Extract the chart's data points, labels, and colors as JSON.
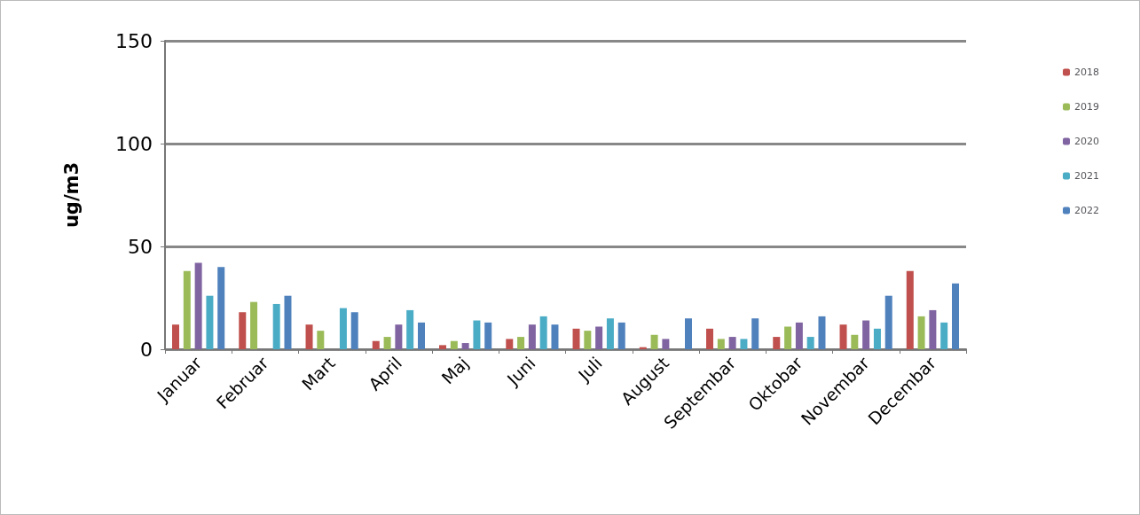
{
  "chart_data": {
    "type": "bar",
    "ylabel": "ug/m3",
    "categories": [
      "Januar",
      "Februar",
      "Mart",
      "April",
      "Maj",
      "Juni",
      "Juli",
      "August",
      "Septembar",
      "Oktobar",
      "Novembar",
      "Decembar"
    ],
    "series": [
      {
        "name": "2018",
        "color": "#c0504d",
        "values": [
          12,
          18,
          12,
          4,
          2,
          5,
          10,
          1,
          10,
          6,
          12,
          38
        ]
      },
      {
        "name": "2019",
        "color": "#9bbb59",
        "values": [
          38,
          23,
          9,
          6,
          4,
          6,
          9,
          7,
          5,
          11,
          7,
          16
        ]
      },
      {
        "name": "2020",
        "color": "#8064a2",
        "values": [
          42,
          null,
          null,
          12,
          3,
          12,
          11,
          5,
          6,
          13,
          14,
          19
        ]
      },
      {
        "name": "2021",
        "color": "#4bacc6",
        "values": [
          26,
          22,
          20,
          19,
          14,
          16,
          15,
          null,
          5,
          6,
          10,
          13
        ]
      },
      {
        "name": "2022",
        "color": "#4f81bd",
        "values": [
          40,
          26,
          18,
          13,
          13,
          12,
          13,
          15,
          15,
          16,
          26,
          32
        ]
      }
    ],
    "ylim": [
      0,
      150
    ],
    "yticks": [
      0,
      50,
      100,
      150
    ],
    "grid": "y",
    "legend": "right"
  }
}
